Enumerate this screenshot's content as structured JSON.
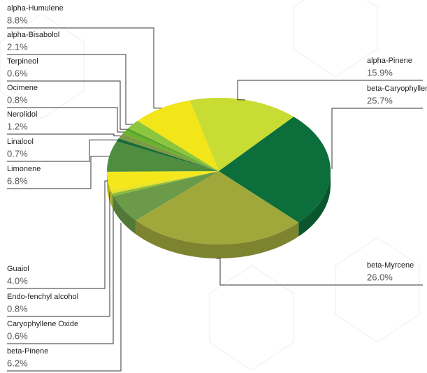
{
  "chart_data": {
    "type": "pie",
    "categories": [
      "alpha-Pinene",
      "beta-Caryophyllene",
      "beta-Myrcene",
      "beta-Pinene",
      "Caryophyllene Oxide",
      "Endo-fenchyl alcohol",
      "Guaiol",
      "Limonene",
      "Linalool",
      "Nerolidol",
      "Ocimene",
      "Terpineol",
      "alpha-Bisabolol",
      "alpha-Humulene"
    ],
    "values": [
      15.9,
      25.7,
      26.0,
      6.2,
      0.6,
      0.8,
      4.0,
      6.8,
      0.7,
      1.2,
      0.8,
      0.6,
      2.1,
      8.8
    ],
    "value_labels": [
      "15.9%",
      "25.7%",
      "26.0%",
      "6.2%",
      "0.6%",
      "0.8%",
      "4.0%",
      "6.8%",
      "0.7%",
      "1.2%",
      "0.8%",
      "0.6%",
      "2.1%",
      "8.8%"
    ],
    "colors": [
      "#c9dc33",
      "#0b6e3b",
      "#a0a83c",
      "#6b9a48",
      "#8cbc3c",
      "#e8e22a",
      "#f4e81c",
      "#4e8e3e",
      "#1b6b38",
      "#7c9a46",
      "#6ab22a",
      "#58a42c",
      "#8cc63f",
      "#f2e51a"
    ]
  }
}
